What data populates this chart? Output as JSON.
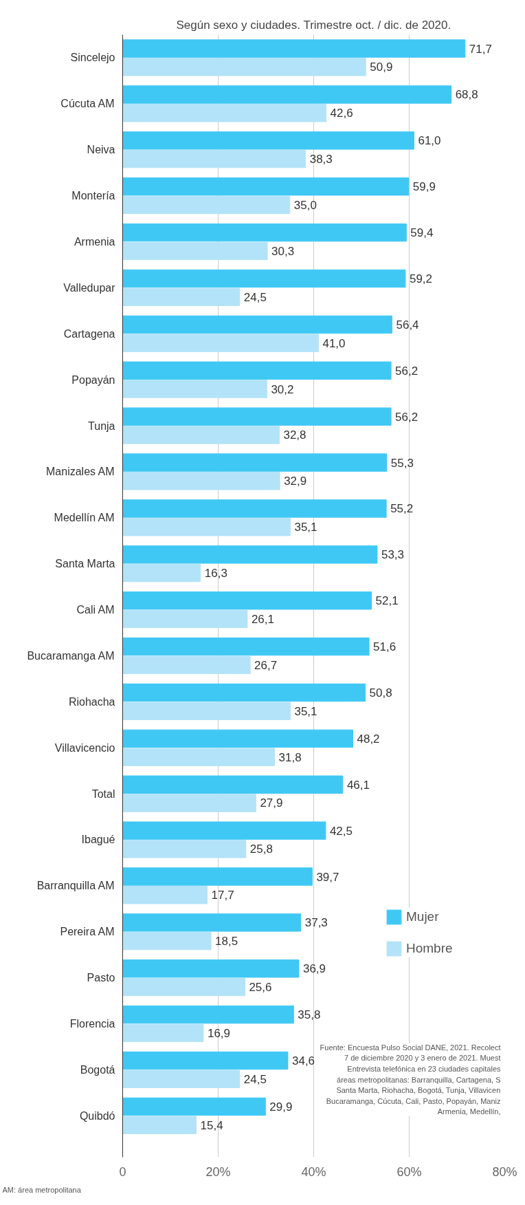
{
  "chart_data": {
    "type": "bar",
    "orientation": "horizontal",
    "subtitle": "Según sexo y ciudades. Trimestre oct. / dic. de 2020.",
    "categories": [
      "Sincelejo",
      "Cúcuta AM",
      "Neiva",
      "Montería",
      "Armenia",
      "Valledupar",
      "Cartagena",
      "Popayán",
      "Tunja",
      "Manizales AM",
      "Medellín AM",
      "Santa Marta",
      "Cali AM",
      "Bucaramanga AM",
      "Riohacha",
      "Villavicencio",
      "Total",
      "Ibagué",
      "Barranquilla AM",
      "Pereira AM",
      "Pasto",
      "Florencia",
      "Bogotá",
      "Quibdó"
    ],
    "series": [
      {
        "name": "Mujer",
        "color": "#40c8f4",
        "values": [
          71.7,
          68.8,
          61.0,
          59.9,
          59.4,
          59.2,
          56.4,
          56.2,
          56.2,
          55.3,
          55.2,
          53.3,
          52.1,
          51.6,
          50.8,
          48.2,
          46.1,
          42.5,
          39.7,
          37.3,
          36.9,
          35.8,
          34.6,
          29.9
        ],
        "value_labels": [
          "71,7",
          "68,8",
          "61,0",
          "59,9",
          "59,4",
          "59,2",
          "56,4",
          "56,2",
          "56,2",
          "55,3",
          "55,2",
          "53,3",
          "52,1",
          "51,6",
          "50,8",
          "48,2",
          "46,1",
          "42,5",
          "39,7",
          "37,3",
          "36,9",
          "35,8",
          "34,6",
          "29,9"
        ]
      },
      {
        "name": "Hombre",
        "color": "#b3e3f8",
        "values": [
          50.9,
          42.6,
          38.3,
          35.0,
          30.3,
          24.5,
          41.0,
          30.2,
          32.8,
          32.9,
          35.1,
          16.3,
          26.1,
          26.7,
          35.1,
          31.8,
          27.9,
          25.8,
          17.7,
          18.5,
          25.6,
          16.9,
          24.5,
          15.4
        ],
        "value_labels": [
          "50,9",
          "42,6",
          "38,3",
          "35,0",
          "30,3",
          "24,5",
          "41,0",
          "30,2",
          "32,8",
          "32,9",
          "35,1",
          "16,3",
          "26,1",
          "26,7",
          "35,1",
          "31,8",
          "27,9",
          "25,8",
          "17,7",
          "18,5",
          "25,6",
          "16,9",
          "24,5",
          "15,4"
        ]
      }
    ],
    "xlim": [
      0,
      80
    ],
    "xticks": [
      {
        "value": 0,
        "label": "0"
      },
      {
        "value": 20,
        "label": "20%"
      },
      {
        "value": 40,
        "label": "40%"
      },
      {
        "value": 60,
        "label": "60%"
      },
      {
        "value": 80,
        "label": "80%"
      }
    ],
    "grid": "x",
    "legend": "bottom right",
    "annotations": [
      "Fuente: Encuesta Pulso Social DANE, 2021. Recolect\n7 de diciembre 2020 y 3 enero de 2021. Muest\nEntrevista telefónica en 23 ciudades capitales\náreas metropolitanas: Barranquilla, Cartagena, S\nSanta Marta, Riohacha, Bogotá, Tunja, Villavicen\nBucaramanga, Cúcuta, Cali, Pasto, Popayán, Maniz\nArmenia, Medellín,",
      "AM: área metropolitana"
    ]
  }
}
